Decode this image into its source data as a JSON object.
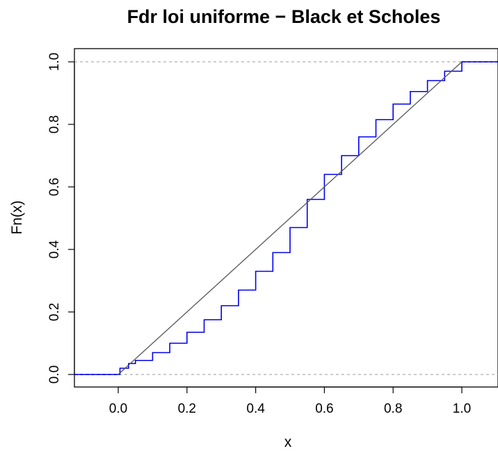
{
  "chart_data": {
    "type": "line",
    "title": "Fdr loi uniforme − Black et Scholes",
    "xlabel": "x",
    "ylabel": "Fn(x)",
    "xlim": [
      -0.13,
      1.11
    ],
    "ylim": [
      -0.04,
      1.04
    ],
    "x_ticks": [
      "0.0",
      "0.2",
      "0.4",
      "0.6",
      "0.8",
      "1.0"
    ],
    "y_ticks": [
      "0.0",
      "0.2",
      "0.4",
      "0.6",
      "0.8",
      "1.0"
    ],
    "hlines": [
      0,
      1
    ],
    "grid": false,
    "legend": "none",
    "series": [
      {
        "color": "#0000ee",
        "style": "step",
        "x": [
          -0.13,
          0.0,
          0.005,
          0.03,
          0.05,
          0.1,
          0.15,
          0.2,
          0.25,
          0.3,
          0.35,
          0.4,
          0.45,
          0.5,
          0.55,
          0.6,
          0.65,
          0.7,
          0.75,
          0.8,
          0.85,
          0.9,
          0.95,
          1.0,
          1.11
        ],
        "y": [
          0.0,
          0.0,
          0.02,
          0.035,
          0.045,
          0.07,
          0.1,
          0.135,
          0.175,
          0.22,
          0.27,
          0.33,
          0.39,
          0.47,
          0.56,
          0.64,
          0.7,
          0.76,
          0.815,
          0.865,
          0.905,
          0.94,
          0.97,
          1.0,
          1.0
        ]
      },
      {
        "color": "#555555",
        "style": "line",
        "x": [
          0.0,
          1.0
        ],
        "y": [
          0.0,
          1.0
        ]
      }
    ]
  }
}
